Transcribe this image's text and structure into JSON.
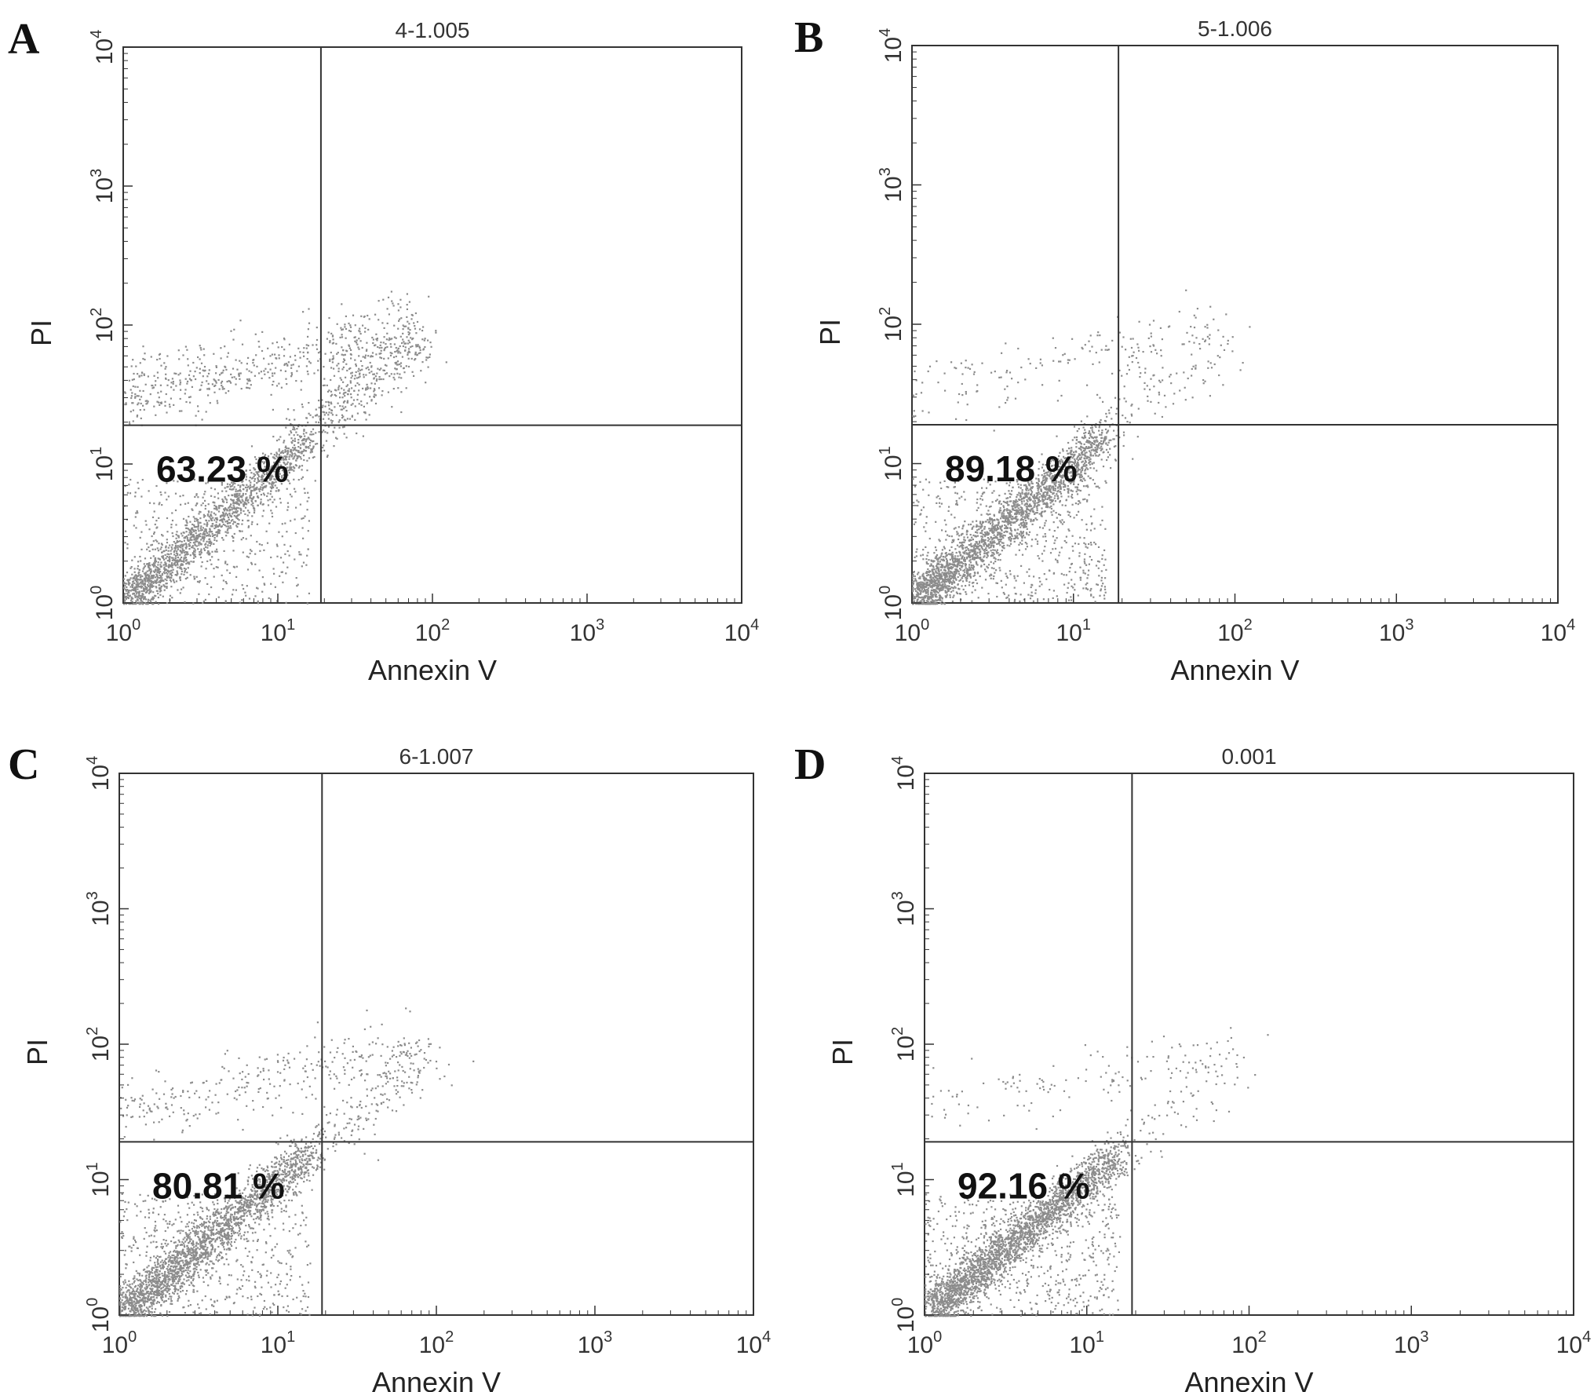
{
  "chart_data": [
    {
      "type": "scatter",
      "panel": "A",
      "title": "4-1.005",
      "xlabel": "Annexin V",
      "ylabel": "PI",
      "xscale": "log",
      "yscale": "log",
      "xlim": [
        1,
        10000
      ],
      "ylim": [
        1,
        10000
      ],
      "xticks": [
        1,
        10,
        100,
        1000,
        10000
      ],
      "yticks": [
        1,
        10,
        100,
        1000,
        10000
      ],
      "gate": {
        "x": 19,
        "y": 19
      },
      "annotation": "63.23 %",
      "color": "#8c8c8c"
    },
    {
      "type": "scatter",
      "panel": "B",
      "title": "5-1.006",
      "xlabel": "Annexin V",
      "ylabel": "PI",
      "xscale": "log",
      "yscale": "log",
      "xlim": [
        1,
        10000
      ],
      "ylim": [
        1,
        10000
      ],
      "xticks": [
        1,
        10,
        100,
        1000,
        10000
      ],
      "yticks": [
        1,
        10,
        100,
        1000,
        10000
      ],
      "gate": {
        "x": 19,
        "y": 19
      },
      "annotation": "89.18 %",
      "color": "#8c8c8c"
    },
    {
      "type": "scatter",
      "panel": "C",
      "title": "6-1.007",
      "xlabel": "Annexin V",
      "ylabel": "PI",
      "xscale": "log",
      "yscale": "log",
      "xlim": [
        1,
        10000
      ],
      "ylim": [
        1,
        10000
      ],
      "xticks": [
        1,
        10,
        100,
        1000,
        10000
      ],
      "yticks": [
        1,
        10,
        100,
        1000,
        10000
      ],
      "gate": {
        "x": 19,
        "y": 19
      },
      "annotation": "80.81 %",
      "color": "#8c8c8c"
    },
    {
      "type": "scatter",
      "panel": "D",
      "title": "0.001",
      "xlabel": "Annexin V",
      "ylabel": "PI",
      "xscale": "log",
      "yscale": "log",
      "xlim": [
        1,
        10000
      ],
      "ylim": [
        1,
        10000
      ],
      "xticks": [
        1,
        10,
        100,
        1000,
        10000
      ],
      "yticks": [
        1,
        10,
        100,
        1000,
        10000
      ],
      "gate": {
        "x": 19,
        "y": 19
      },
      "annotation": "92.16 %",
      "color": "#8c8c8c"
    }
  ]
}
